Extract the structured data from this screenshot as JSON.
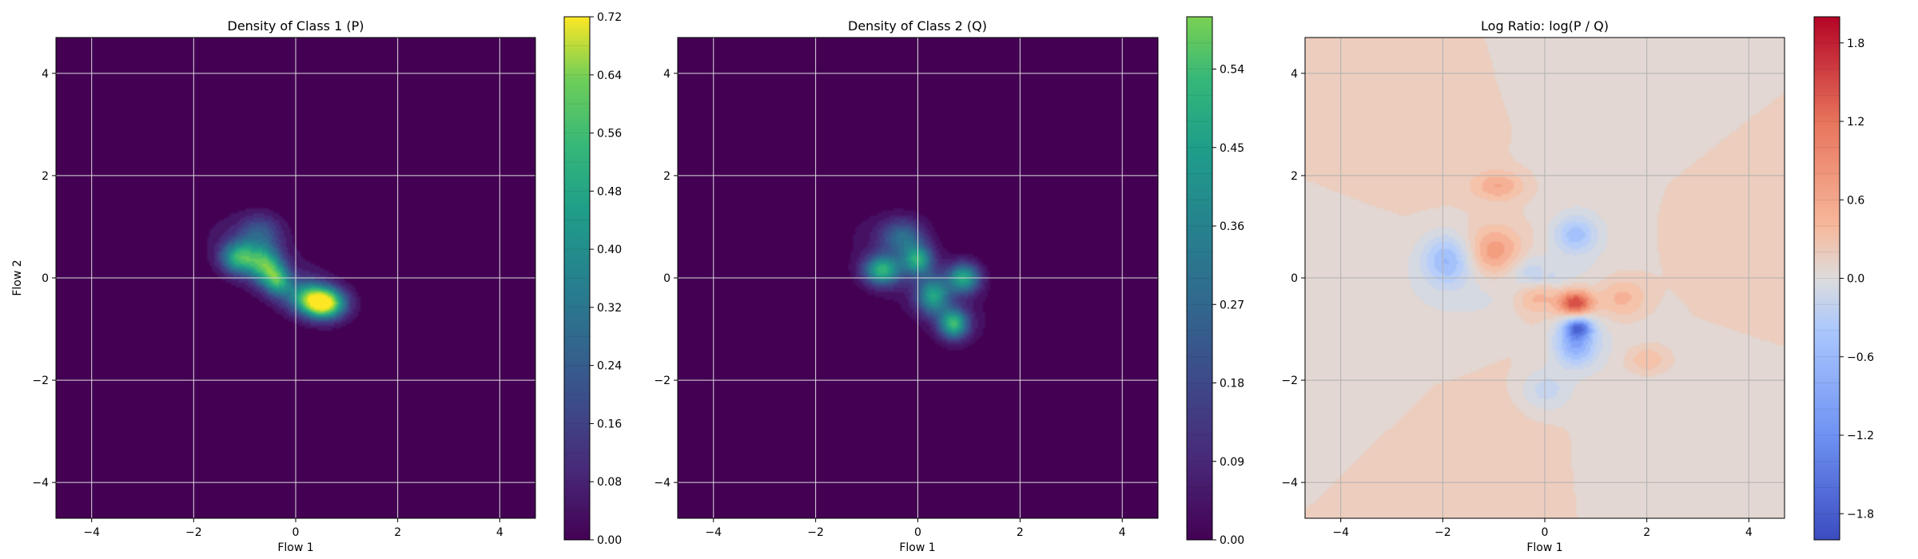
{
  "chart_data": [
    {
      "type": "heatmap",
      "title": "Density of Class 1 (P)",
      "xlabel": "Flow 1",
      "ylabel": "Flow 2",
      "xlim": [
        -4.7,
        4.7
      ],
      "ylim": [
        -4.7,
        4.7
      ],
      "xticks": [
        -4,
        -2,
        0,
        2,
        4
      ],
      "yticks": [
        -4,
        -2,
        0,
        2,
        4
      ],
      "grid": true,
      "colormap": "viridis",
      "colorbar": {
        "min": 0.0,
        "max": 0.72,
        "ticks": [
          "0.00",
          "0.08",
          "0.16",
          "0.24",
          "0.32",
          "0.40",
          "0.48",
          "0.56",
          "0.64",
          "0.72"
        ],
        "levels": 18
      },
      "blobs": [
        {
          "x": -0.5,
          "y": 0.25,
          "sx": 1.2,
          "sy": 0.45,
          "rot": -32,
          "amp": 0.07
        },
        {
          "x": 0.55,
          "y": -0.5,
          "sx": 0.28,
          "sy": 0.2,
          "rot": 0,
          "amp": 0.68
        },
        {
          "x": -1.1,
          "y": 0.4,
          "sx": 0.25,
          "sy": 0.22,
          "rot": 0,
          "amp": 0.42
        },
        {
          "x": -0.6,
          "y": 0.25,
          "sx": 0.22,
          "sy": 0.25,
          "rot": 0,
          "amp": 0.4
        },
        {
          "x": -0.35,
          "y": -0.05,
          "sx": 0.18,
          "sy": 0.2,
          "rot": 0,
          "amp": 0.35
        },
        {
          "x": 0.2,
          "y": -0.35,
          "sx": 0.3,
          "sy": 0.22,
          "rot": 0,
          "amp": 0.3
        },
        {
          "x": -0.7,
          "y": 0.9,
          "sx": 0.3,
          "sy": 0.25,
          "rot": 0,
          "amp": 0.18
        }
      ]
    },
    {
      "type": "heatmap",
      "title": "Density of Class 2 (Q)",
      "xlabel": "Flow 1",
      "ylabel": "",
      "xlim": [
        -4.7,
        4.7
      ],
      "ylim": [
        -4.7,
        4.7
      ],
      "xticks": [
        -4,
        -2,
        0,
        2,
        4
      ],
      "yticks": [
        -4,
        -2,
        0,
        2,
        4
      ],
      "grid": true,
      "colormap": "viridis",
      "colorbar": {
        "min": 0.0,
        "max": 0.6,
        "ticks": [
          "0.00",
          "0.09",
          "0.18",
          "0.27",
          "0.36",
          "0.45",
          "0.54"
        ],
        "levels": 20
      },
      "blobs": [
        {
          "x": 0.0,
          "y": 0.0,
          "sx": 1.25,
          "sy": 0.5,
          "rot": -38,
          "amp": 0.06
        },
        {
          "x": -0.7,
          "y": 0.15,
          "sx": 0.25,
          "sy": 0.2,
          "rot": 0,
          "amp": 0.4
        },
        {
          "x": 0.0,
          "y": 0.35,
          "sx": 0.2,
          "sy": 0.2,
          "rot": 0,
          "amp": 0.35
        },
        {
          "x": 0.9,
          "y": 0.0,
          "sx": 0.22,
          "sy": 0.2,
          "rot": 0,
          "amp": 0.38
        },
        {
          "x": 0.3,
          "y": -0.35,
          "sx": 0.22,
          "sy": 0.25,
          "rot": 0,
          "amp": 0.34
        },
        {
          "x": 0.7,
          "y": -0.9,
          "sx": 0.2,
          "sy": 0.2,
          "rot": 0,
          "amp": 0.42
        },
        {
          "x": -0.3,
          "y": 0.8,
          "sx": 0.3,
          "sy": 0.25,
          "rot": 0,
          "amp": 0.22
        }
      ]
    },
    {
      "type": "heatmap",
      "title": "Log Ratio: log(P / Q)",
      "xlabel": "Flow 1",
      "ylabel": "",
      "xlim": [
        -4.7,
        4.7
      ],
      "ylim": [
        -4.7,
        4.7
      ],
      "xticks": [
        -4,
        -2,
        0,
        2,
        4
      ],
      "yticks": [
        -4,
        -2,
        0,
        2,
        4
      ],
      "grid": true,
      "colormap": "coolwarm",
      "colorbar": {
        "min": -2.0,
        "max": 2.0,
        "ticks": [
          "−1.8",
          "−1.2",
          "−0.6",
          "0.0",
          "0.6",
          "1.2",
          "1.8"
        ],
        "tick_values": [
          -1.8,
          -1.2,
          -0.6,
          0.0,
          0.6,
          1.2,
          1.8
        ],
        "levels": 20
      },
      "blobs": [
        {
          "x": 0.6,
          "y": -0.5,
          "sx": 0.25,
          "sy": 0.2,
          "rot": 0,
          "amp": 1.6
        },
        {
          "x": -1.0,
          "y": 0.5,
          "sx": 0.4,
          "sy": 0.35,
          "rot": 0,
          "amp": 0.9
        },
        {
          "x": -0.9,
          "y": 1.8,
          "sx": 0.35,
          "sy": 0.2,
          "rot": 0,
          "amp": 0.6
        },
        {
          "x": -0.2,
          "y": -0.3,
          "sx": 0.3,
          "sy": 0.25,
          "rot": 0,
          "amp": 0.8
        },
        {
          "x": 1.5,
          "y": -0.4,
          "sx": 0.35,
          "sy": 0.3,
          "rot": 0,
          "amp": 0.6
        },
        {
          "x": 2.0,
          "y": -1.6,
          "sx": 0.3,
          "sy": 0.2,
          "rot": 0,
          "amp": 0.5
        },
        {
          "x": -1.9,
          "y": 0.35,
          "sx": 0.35,
          "sy": 0.35,
          "rot": 0,
          "amp": -0.9
        },
        {
          "x": 0.6,
          "y": -1.3,
          "sx": 0.3,
          "sy": 0.3,
          "rot": 0,
          "amp": -1.1
        },
        {
          "x": 0.65,
          "y": -0.95,
          "sx": 0.2,
          "sy": 0.15,
          "rot": 0,
          "amp": -1.3
        },
        {
          "x": 0.6,
          "y": 0.85,
          "sx": 0.3,
          "sy": 0.25,
          "rot": 0,
          "amp": -0.8
        },
        {
          "x": -0.2,
          "y": 0.0,
          "sx": 0.3,
          "sy": 0.3,
          "rot": 0,
          "amp": -0.6
        },
        {
          "x": 0.0,
          "y": -2.2,
          "sx": 0.35,
          "sy": 0.3,
          "rot": 0,
          "amp": -0.5
        }
      ]
    }
  ]
}
